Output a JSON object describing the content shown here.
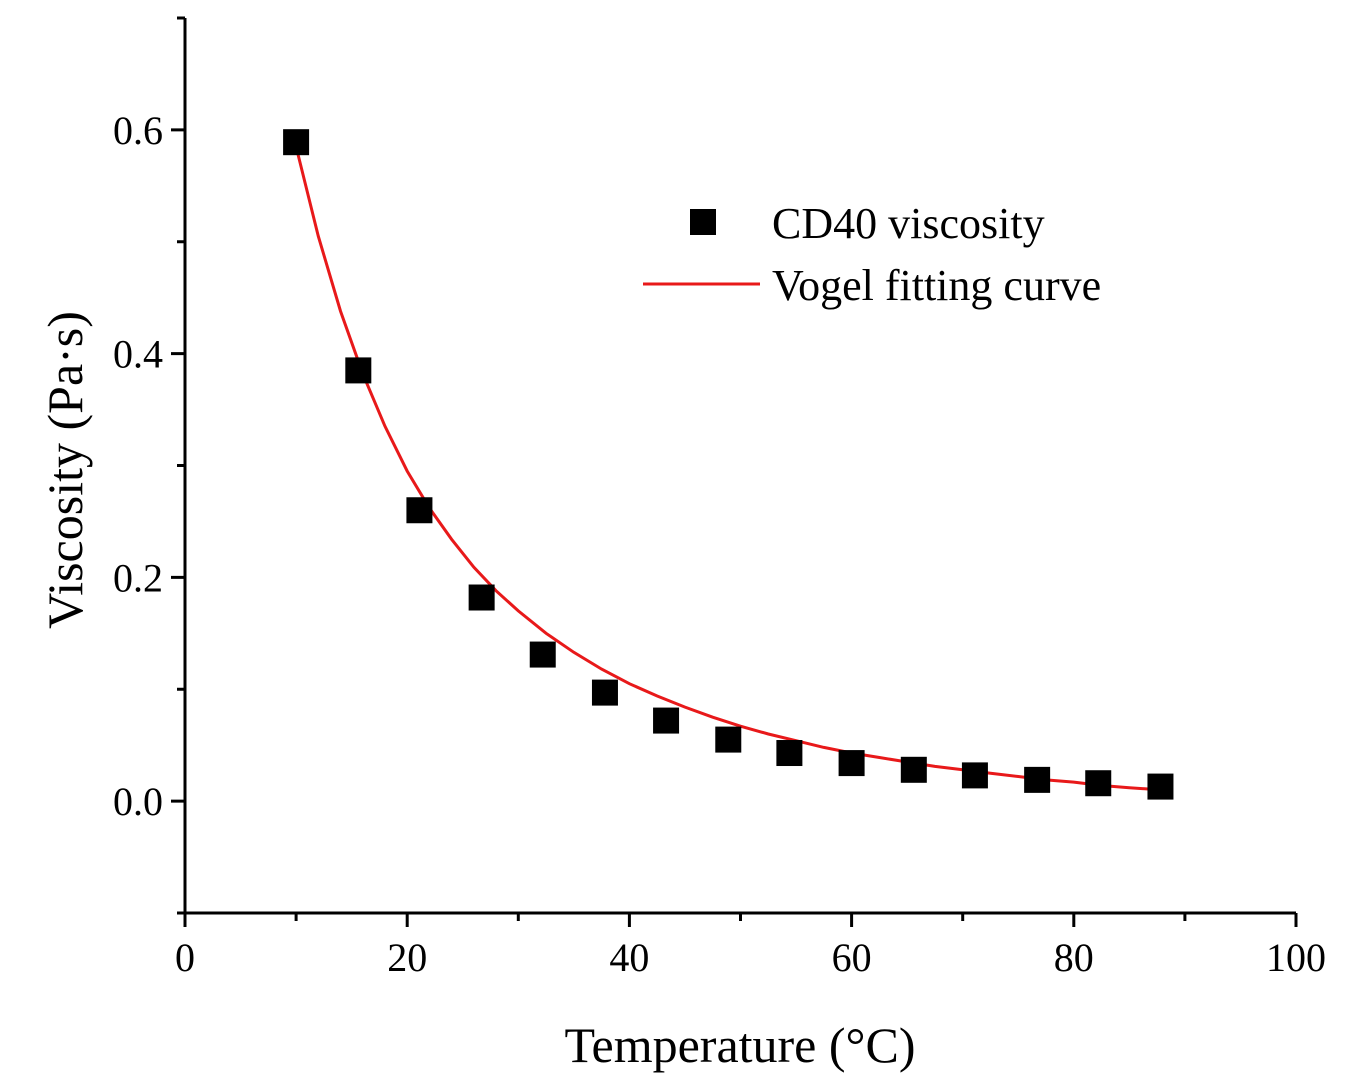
{
  "chart_data": {
    "type": "scatter",
    "xlabel": "Temperature (°C)",
    "ylabel": "Viscosity (Pa·s)",
    "xlim": [
      0,
      100
    ],
    "ylim": [
      -0.1,
      0.7
    ],
    "x_ticks": [
      0,
      20,
      40,
      60,
      80,
      100
    ],
    "x_tick_labels": [
      "0",
      "20",
      "40",
      "60",
      "80",
      "100"
    ],
    "x_minor_ticks": [
      10,
      30,
      50,
      70,
      90
    ],
    "y_ticks": [
      0.0,
      0.2,
      0.4,
      0.6
    ],
    "y_tick_labels": [
      "0.0",
      "0.2",
      "0.4",
      "0.6"
    ],
    "y_minor_ticks": [
      -0.1,
      0.1,
      0.3,
      0.5,
      0.7
    ],
    "grid": false,
    "legend_position": "top-right",
    "series": [
      {
        "name": "CD40 viscosity",
        "kind": "points",
        "marker": "square",
        "color": "#000000",
        "x": [
          10.0,
          15.6,
          21.1,
          26.7,
          32.2,
          37.8,
          43.3,
          48.9,
          54.4,
          60.0,
          65.6,
          71.1,
          76.7,
          82.2,
          87.8
        ],
        "y": [
          0.589,
          0.385,
          0.26,
          0.182,
          0.131,
          0.097,
          0.072,
          0.055,
          0.043,
          0.034,
          0.028,
          0.023,
          0.019,
          0.016,
          0.013
        ]
      },
      {
        "name": "Vogel fitting curve",
        "kind": "line",
        "color": "#e8191a",
        "x": [
          10,
          12,
          14,
          16,
          18,
          20,
          22,
          24,
          26,
          28,
          30,
          32.5,
          35,
          37.5,
          40,
          42.5,
          45,
          47.5,
          50,
          52.5,
          55,
          57.5,
          60,
          62.5,
          65,
          67.5,
          70,
          72.5,
          75,
          77.5,
          80,
          82.5,
          85,
          87.8
        ],
        "y": [
          0.585,
          0.505,
          0.438,
          0.382,
          0.335,
          0.295,
          0.262,
          0.234,
          0.209,
          0.188,
          0.17,
          0.15,
          0.133,
          0.118,
          0.105,
          0.094,
          0.084,
          0.075,
          0.067,
          0.06,
          0.054,
          0.048,
          0.043,
          0.039,
          0.035,
          0.031,
          0.028,
          0.025,
          0.022,
          0.019,
          0.017,
          0.014,
          0.012,
          0.01
        ]
      }
    ]
  }
}
